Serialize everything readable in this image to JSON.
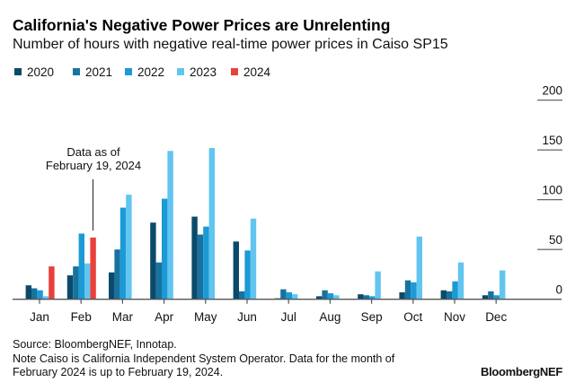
{
  "chart_data": {
    "type": "bar",
    "title": "California's Negative Power Prices are Unrelenting",
    "subtitle": "Number of hours with negative real-time power prices in Caiso SP15",
    "xlabel": "",
    "ylabel": "",
    "ylim": [
      0,
      200
    ],
    "yticks": [
      "0",
      "50",
      "100",
      "150",
      "200"
    ],
    "ytick_values": [
      0,
      50,
      100,
      150,
      200
    ],
    "y_axis_side": "right",
    "grid": false,
    "legend_position": "top-left",
    "categories": [
      "Jan",
      "Feb",
      "Mar",
      "Apr",
      "May",
      "Jun",
      "Jul",
      "Aug",
      "Sep",
      "Oct",
      "Nov",
      "Dec"
    ],
    "series": [
      {
        "name": "2020",
        "color": "#0b4a6a",
        "values": [
          14,
          24,
          27,
          77,
          83,
          58,
          1,
          3,
          5,
          7,
          9,
          4
        ]
      },
      {
        "name": "2021",
        "color": "#18729f",
        "values": [
          11,
          33,
          50,
          37,
          65,
          8,
          10,
          9,
          4,
          19,
          8,
          8
        ]
      },
      {
        "name": "2022",
        "color": "#1b9ad6",
        "values": [
          9,
          66,
          92,
          101,
          73,
          49,
          7,
          6,
          3,
          17,
          18,
          4
        ]
      },
      {
        "name": "2023",
        "color": "#62c5f0",
        "values": [
          3,
          36,
          105,
          149,
          152,
          81,
          5,
          4,
          28,
          63,
          37,
          29
        ]
      },
      {
        "name": "2024",
        "color": "#e8413a",
        "values": [
          33,
          62,
          null,
          null,
          null,
          null,
          null,
          null,
          null,
          null,
          null,
          null
        ]
      }
    ],
    "annotation": {
      "lines": [
        "Data as of",
        "February 19, 2024"
      ],
      "points_to": "Feb 2024"
    }
  },
  "footer": {
    "source": "Source: BloombergNEF, Innotap.",
    "note_line1": "Note Caiso is California Independent System Operator. Data for the month of",
    "note_line2": "February 2024 is up to February 19, 2024.",
    "brand": "BloombergNEF"
  }
}
